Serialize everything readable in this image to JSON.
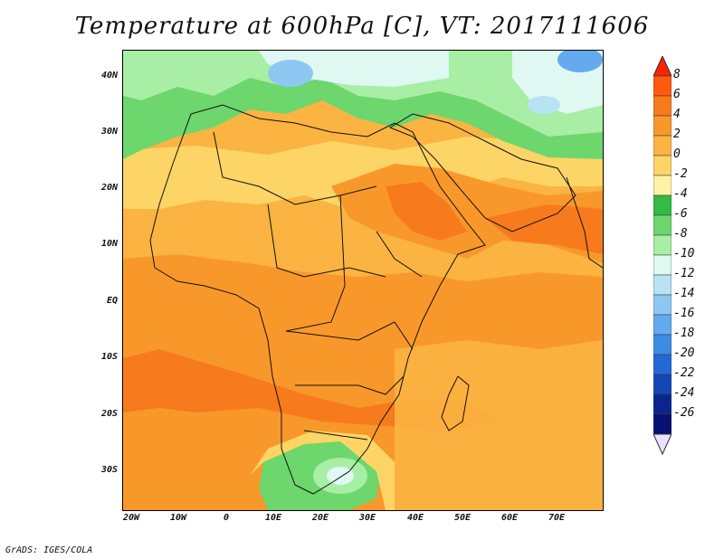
{
  "title": "Temperature at 600hPa [C], VT: 2017111606",
  "credit": "GrADS: IGES/COLA",
  "lat_labels": [
    "40N",
    "30N",
    "20N",
    "10N",
    "EQ",
    "10S",
    "20S",
    "30S"
  ],
  "lon_labels": [
    "20W",
    "10W",
    "0",
    "10E",
    "20E",
    "30E",
    "40E",
    "50E",
    "60E",
    "70E"
  ],
  "colorbar": {
    "levels": [
      "8",
      "6",
      "4",
      "2",
      "0",
      "-2",
      "-4",
      "-6",
      "-8",
      "-10",
      "-12",
      "-14",
      "-16",
      "-18",
      "-20",
      "-22",
      "-24",
      "-26"
    ],
    "colors": [
      "#ff2200",
      "#ff5a10",
      "#f77a1c",
      "#f9982a",
      "#fbb441",
      "#fcd566",
      "#fff1a6",
      "#33bb44",
      "#6dd66d",
      "#a8eea4",
      "#dff8f2",
      "#b8e3f5",
      "#8ec8f2",
      "#63aaee",
      "#3e8be6",
      "#2468d6",
      "#1447b6",
      "#0a268e",
      "#061070",
      "#e8e2ff"
    ]
  }
}
